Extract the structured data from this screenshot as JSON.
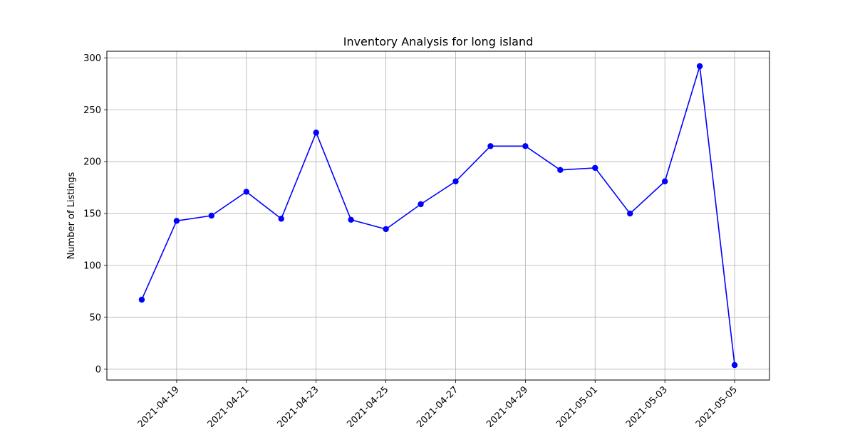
{
  "chart_data": {
    "type": "line",
    "title": "Inventory Analysis for long island",
    "xlabel": "",
    "ylabel": "Number of Listings",
    "grid": true,
    "series": [
      {
        "name": "",
        "color": "#0000ff",
        "marker": "circle",
        "x": [
          "2021-04-18",
          "2021-04-19",
          "2021-04-20",
          "2021-04-21",
          "2021-04-22",
          "2021-04-23",
          "2021-04-24",
          "2021-04-25",
          "2021-04-26",
          "2021-04-27",
          "2021-04-28",
          "2021-04-29",
          "2021-04-30",
          "2021-05-01",
          "2021-05-02",
          "2021-05-03",
          "2021-05-04",
          "2021-05-05"
        ],
        "y": [
          67,
          143,
          148,
          171,
          145,
          228,
          144,
          135,
          159,
          181,
          215,
          215,
          192,
          194,
          150,
          181,
          292,
          4
        ]
      }
    ],
    "x_ticks": [
      "2021-04-19",
      "2021-04-21",
      "2021-04-23",
      "2021-04-25",
      "2021-04-27",
      "2021-04-29",
      "2021-05-01",
      "2021-05-03",
      "2021-05-05"
    ],
    "y_ticks": [
      0,
      50,
      100,
      150,
      200,
      250,
      300
    ],
    "xlim": [
      "2021-04-17",
      "2021-05-06"
    ],
    "ylim": [
      -10.4,
      306.4
    ]
  }
}
